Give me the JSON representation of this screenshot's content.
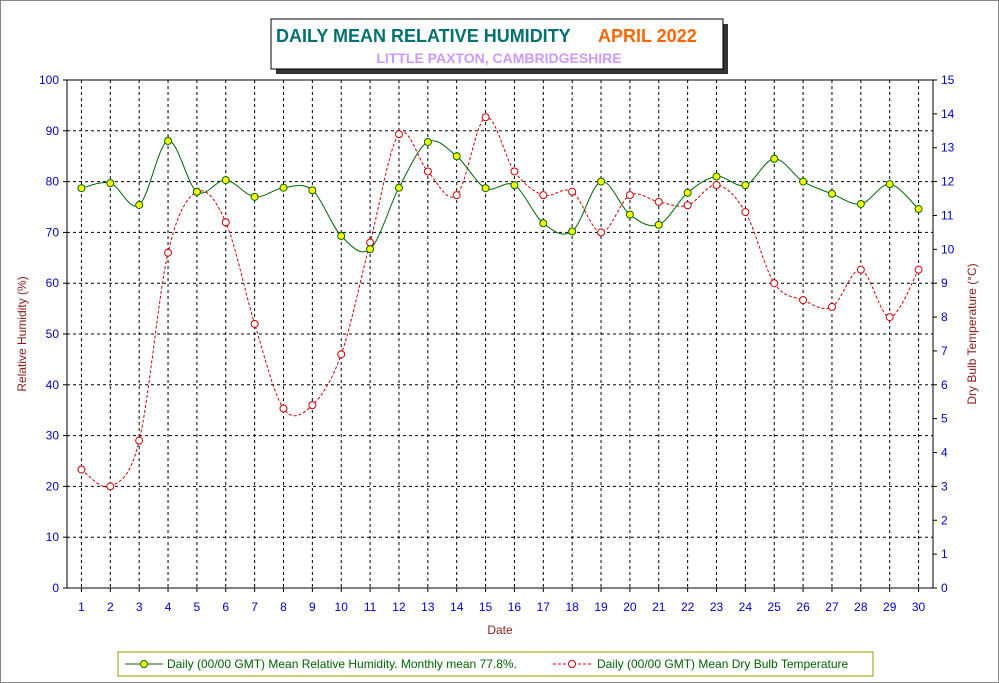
{
  "chart_data": {
    "type": "line",
    "title": "DAILY MEAN RELATIVE HUMIDITY",
    "title_period": "APRIL 2022",
    "subtitle": "LITTLE PAXTON, CAMBRIDGESHIRE",
    "xlabel": "Date",
    "ylabel": "Relative Humidity (%)",
    "y2label": "Dry Bulb Temperature (°C)",
    "x": [
      1,
      2,
      3,
      4,
      5,
      6,
      7,
      8,
      9,
      10,
      11,
      12,
      13,
      14,
      15,
      16,
      17,
      18,
      19,
      20,
      21,
      22,
      23,
      24,
      25,
      26,
      27,
      28,
      29,
      30
    ],
    "ylim": [
      0,
      100
    ],
    "y2lim": [
      0,
      15
    ],
    "yticks": [
      0,
      10,
      20,
      30,
      40,
      50,
      60,
      70,
      80,
      90,
      100
    ],
    "y2ticks": [
      0,
      1,
      2,
      3,
      4,
      5,
      6,
      7,
      8,
      9,
      10,
      11,
      12,
      13,
      14,
      15
    ],
    "grid": true,
    "legend_position": "bottom",
    "series": [
      {
        "name": "Daily (00/00 GMT) Mean Relative Humidity. Monthly mean 77.8%.",
        "axis": "left",
        "color": "#006400",
        "marker_color": "#ffff00",
        "values": [
          78.7,
          79.7,
          75.4,
          88.0,
          78.0,
          80.3,
          77.0,
          78.8,
          78.3,
          69.3,
          66.7,
          78.8,
          87.8,
          85.0,
          78.7,
          79.3,
          71.8,
          70.2,
          80.0,
          73.5,
          71.5,
          77.8,
          81.0,
          79.3,
          84.5,
          80.0,
          77.6,
          75.6,
          79.5,
          74.6
        ]
      },
      {
        "name": "Daily (00/00 GMT) Mean Dry Bulb Temperature",
        "axis": "right",
        "color": "#cc0000",
        "values": [
          3.5,
          3.0,
          4.35,
          9.9,
          11.7,
          10.8,
          7.8,
          5.3,
          5.4,
          6.9,
          10.2,
          13.4,
          12.3,
          11.6,
          13.9,
          12.3,
          11.6,
          11.7,
          10.5,
          11.6,
          11.4,
          11.3,
          11.9,
          11.1,
          9.0,
          8.5,
          8.3,
          9.4,
          8.0,
          9.4
        ]
      }
    ]
  }
}
